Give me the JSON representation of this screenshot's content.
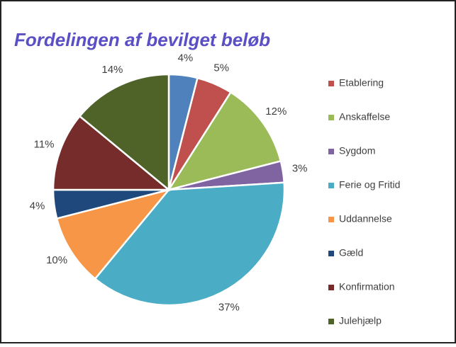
{
  "chart_data": {
    "type": "pie",
    "title": "Fordelingen af bevilget beløb",
    "categories": [
      null,
      "Etablering",
      "Anskaffelse",
      "Sygdom",
      "Ferie og Fritid",
      "Uddannelse",
      "Gæld",
      "Konfirmation",
      "Julehjælp"
    ],
    "values": [
      4,
      5,
      12,
      3,
      37,
      10,
      4,
      11,
      14
    ],
    "value_labels": [
      "4%",
      "5%",
      "12%",
      "3%",
      "37%",
      "10%",
      "4%",
      "11%",
      "14%"
    ],
    "colors": [
      "#4f81bd",
      "#c0504d",
      "#9bbb59",
      "#8064a2",
      "#4bacc6",
      "#f79646",
      "#1f497d",
      "#772c2c",
      "#4f6228"
    ],
    "legend": "right"
  }
}
